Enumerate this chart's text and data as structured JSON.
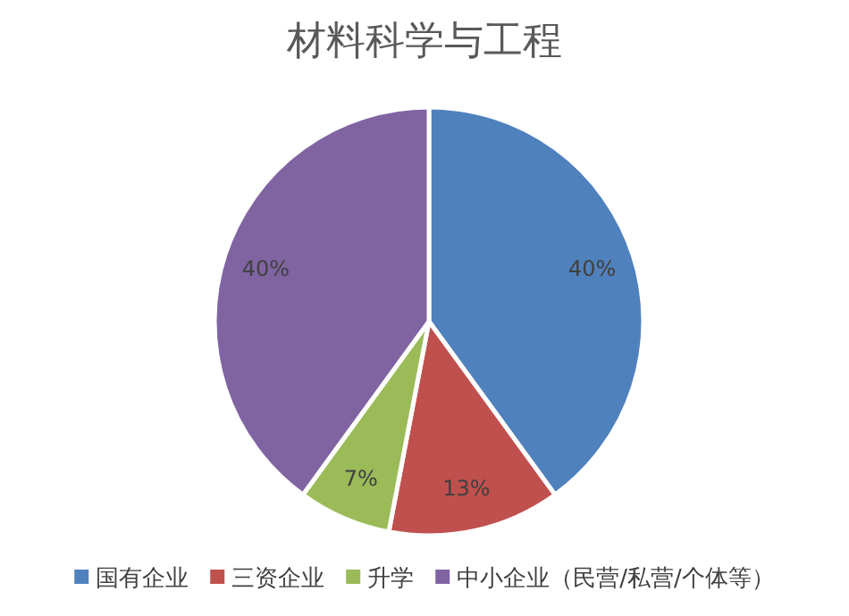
{
  "chart_data": {
    "type": "pie",
    "title": "材料科学与工程",
    "categories": [
      "国有企业",
      "三资企业",
      "升学",
      "中小企业（民营/私营/个体等）"
    ],
    "values": [
      40,
      13,
      7,
      40
    ],
    "colors": [
      "#4f81bd",
      "#c0504d",
      "#9bbb59",
      "#8064a2"
    ],
    "value_labels": [
      "40%",
      "13%",
      "7%",
      "40%"
    ],
    "legend": "bottom"
  }
}
